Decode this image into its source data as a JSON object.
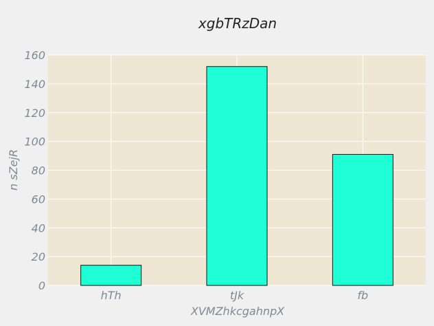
{
  "chart_data": {
    "type": "bar",
    "title": "xgbTRzDan",
    "xlabel": "XVMZhkcgahnpX",
    "ylabel": "n sZejR",
    "categories": [
      "hTh",
      "tJk",
      "fb"
    ],
    "values": [
      14,
      152,
      91
    ],
    "ylim": [
      0,
      160
    ],
    "yticks": [
      0,
      20,
      40,
      60,
      80,
      100,
      120,
      140,
      160
    ],
    "grid": true,
    "colors": {
      "bar": "#1fffd6",
      "bar_edge": "#111111",
      "plot_bg": "#efe7d4",
      "grid": "#ffffff",
      "text": "#7a8a93"
    }
  }
}
